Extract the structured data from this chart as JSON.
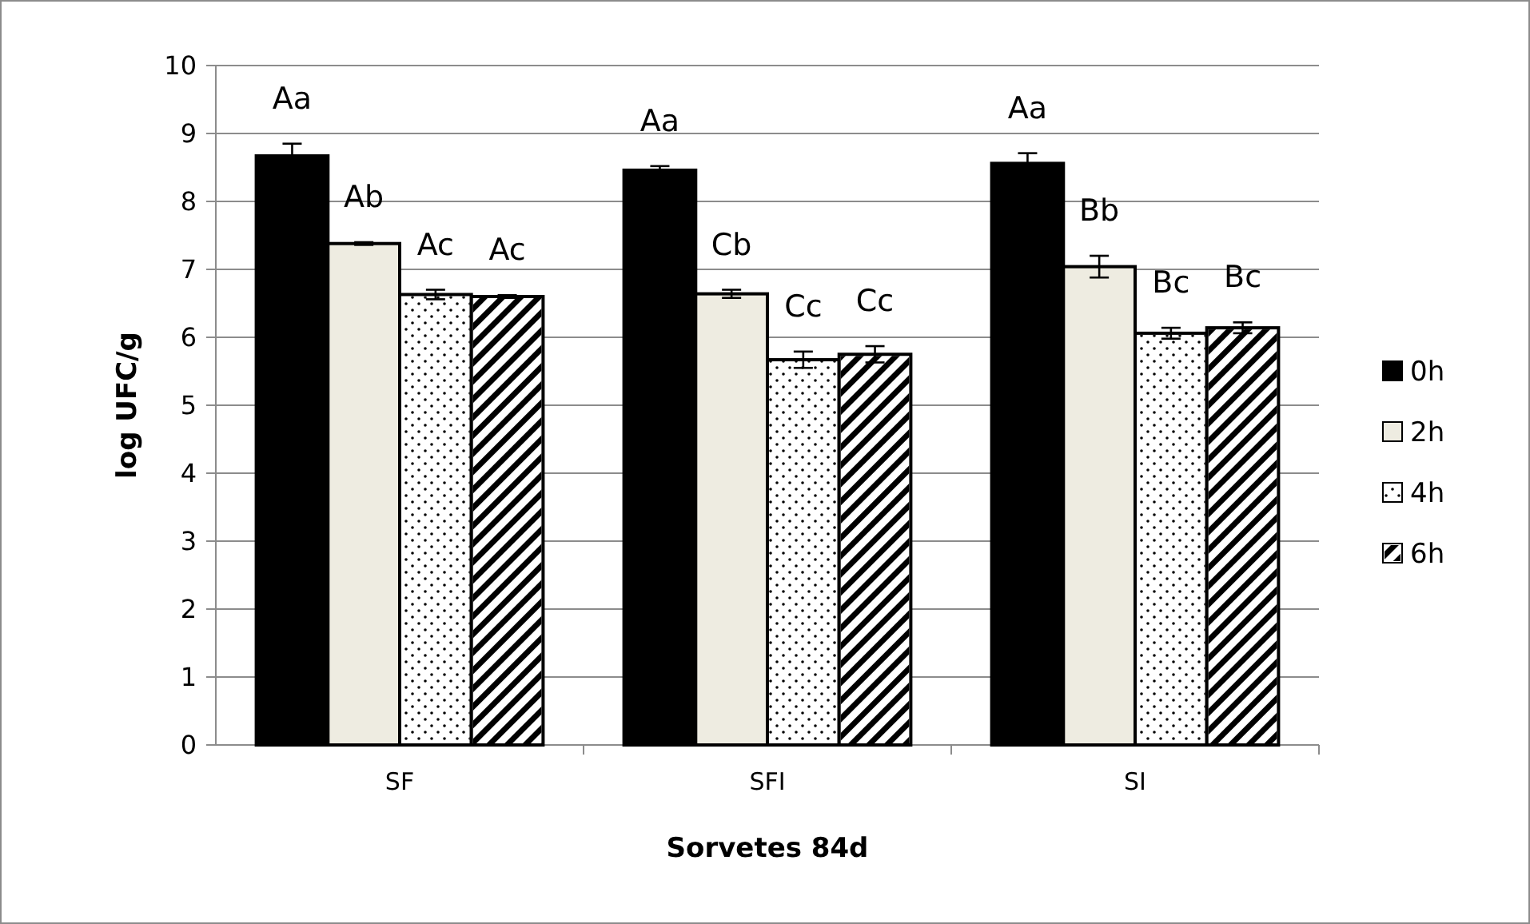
{
  "chart_data": {
    "type": "bar",
    "xlabel": "Sorvetes 84d",
    "ylabel": "log UFC/g",
    "categories": [
      "SF",
      "SFI",
      "SI"
    ],
    "ylim": [
      0,
      10
    ],
    "yticks": [
      0,
      1,
      2,
      3,
      4,
      5,
      6,
      7,
      8,
      9,
      10
    ],
    "grid": "y",
    "legend": "right",
    "series": [
      {
        "name": "0h",
        "color": "#000000",
        "values": [
          8.67,
          8.46,
          8.56
        ],
        "errors": [
          0.18,
          0.06,
          0.15
        ],
        "value_labels": [
          "Aa",
          "Aa",
          "Aa"
        ]
      },
      {
        "name": "2h",
        "color": "#eeece1",
        "values": [
          7.38,
          6.64,
          7.04
        ],
        "errors": [
          0.02,
          0.06,
          0.16
        ],
        "value_labels": [
          "Ab",
          "Cb",
          "Bb"
        ]
      },
      {
        "name": "4h",
        "color": "#ffffff",
        "values": [
          6.63,
          5.67,
          6.06
        ],
        "errors": [
          0.07,
          0.12,
          0.08
        ],
        "value_labels": [
          "Ac",
          "Cc",
          "Bc"
        ]
      },
      {
        "name": "6h",
        "color": "#ffffff",
        "values": [
          6.6,
          5.75,
          6.14
        ],
        "errors": [
          0.02,
          0.12,
          0.08
        ],
        "value_labels": [
          "Ac",
          "Cc",
          "Bc"
        ]
      }
    ]
  }
}
